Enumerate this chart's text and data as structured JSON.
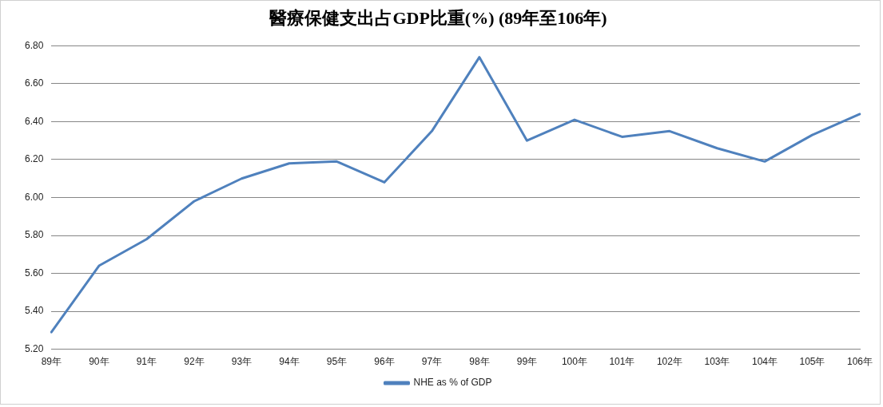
{
  "chart_data": {
    "type": "line",
    "title": "醫療保健支出占GDP比重(%) (89年至106年)",
    "categories": [
      "89年",
      "90年",
      "91年",
      "92年",
      "93年",
      "94年",
      "95年",
      "96年",
      "97年",
      "98年",
      "99年",
      "100年",
      "101年",
      "102年",
      "103年",
      "104年",
      "105年",
      "106年"
    ],
    "series": [
      {
        "name": "NHE as % of GDP",
        "color": "#4f81bd",
        "values": [
          5.29,
          5.64,
          5.78,
          5.98,
          6.1,
          6.18,
          6.19,
          6.08,
          6.35,
          6.74,
          6.3,
          6.41,
          6.32,
          6.35,
          6.26,
          6.19,
          6.33,
          6.44
        ]
      }
    ],
    "ylim": [
      5.2,
      6.8
    ],
    "yticks": [
      {
        "value": 5.2,
        "label": "5.20"
      },
      {
        "value": 5.4,
        "label": "5.40"
      },
      {
        "value": 5.6,
        "label": "5.60"
      },
      {
        "value": 5.8,
        "label": "5.80"
      },
      {
        "value": 6.0,
        "label": "6.00"
      },
      {
        "value": 6.2,
        "label": "6.20"
      },
      {
        "value": 6.4,
        "label": "6.40"
      },
      {
        "value": 6.6,
        "label": "6.60"
      },
      {
        "value": 6.8,
        "label": "6.80"
      }
    ],
    "grid": "y",
    "legend": "bottom",
    "marker": "none",
    "line_style": "solid"
  }
}
